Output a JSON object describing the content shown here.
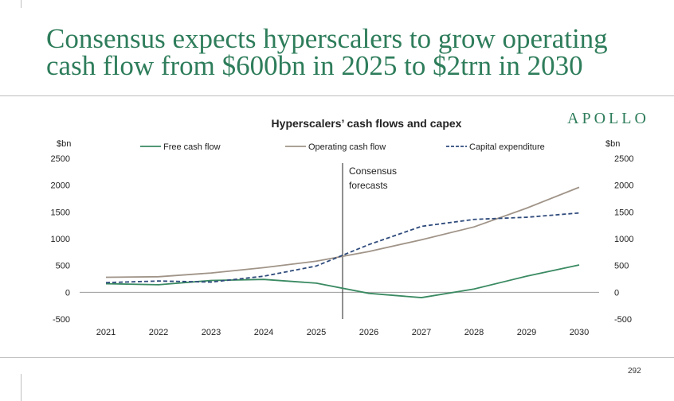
{
  "slide": {
    "headline": "Consensus expects hyperscalers to grow operating cash flow from $600bn in 2025 to $2trn in 2030",
    "brand": "APOLLO",
    "page_number": "292"
  },
  "colors": {
    "free_cash_flow": "#3a8a62",
    "operating_cash_flow": "#a09488",
    "capital_expenditure": "#2f4b7c",
    "headline": "#2e7d5b"
  },
  "chart_data": {
    "type": "line",
    "title": "Hyperscalers’ cash flows and capex",
    "ylabel_left": "$bn",
    "ylabel_right": "$bn",
    "ylim": [
      -500,
      2500
    ],
    "yticks": [
      -500,
      0,
      500,
      1000,
      1500,
      2000,
      2500
    ],
    "categories": [
      "2021",
      "2022",
      "2023",
      "2024",
      "2025",
      "2026",
      "2027",
      "2028",
      "2029",
      "2030"
    ],
    "annotation": {
      "text_lines": [
        "Consensus",
        "forecasts"
      ],
      "x_between": [
        "2025",
        "2026"
      ]
    },
    "legend_position": "top",
    "grid": false,
    "series": [
      {
        "name": "Free cash flow",
        "style": "solid",
        "values": [
          160,
          140,
          220,
          240,
          170,
          -20,
          -100,
          60,
          300,
          510
        ]
      },
      {
        "name": "Operating cash flow",
        "style": "solid",
        "values": [
          280,
          290,
          360,
          460,
          580,
          760,
          980,
          1220,
          1570,
          1960
        ]
      },
      {
        "name": "Capital expenditure",
        "style": "dashed",
        "values": [
          180,
          210,
          190,
          300,
          490,
          890,
          1230,
          1360,
          1400,
          1480
        ]
      }
    ]
  }
}
